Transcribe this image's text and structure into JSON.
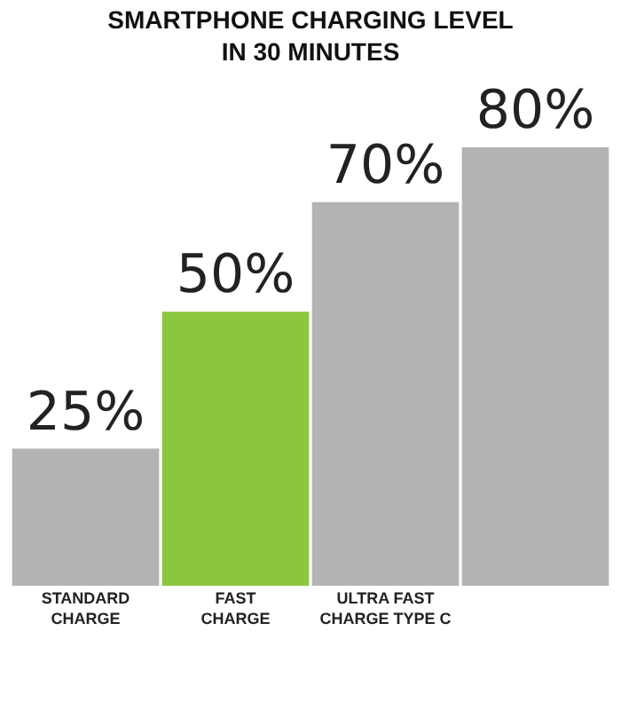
{
  "chart_data": {
    "type": "bar",
    "title": "SMARTPHONE CHARGING LEVEL\nIN 30 MINUTES",
    "categories": [
      "STANDARD\nCHARGE",
      "FAST\nCHARGE",
      "ULTRA FAST\nCHARGE TYPE C",
      null
    ],
    "values": [
      25,
      50,
      70,
      80
    ],
    "colors": [
      "#b3b3b3",
      "#8cc63f",
      "#b3b3b3",
      "#b3b3b3"
    ],
    "value_labels": [
      "25%",
      "50%",
      "70%",
      "80%"
    ],
    "grid": false,
    "legend": false
  }
}
